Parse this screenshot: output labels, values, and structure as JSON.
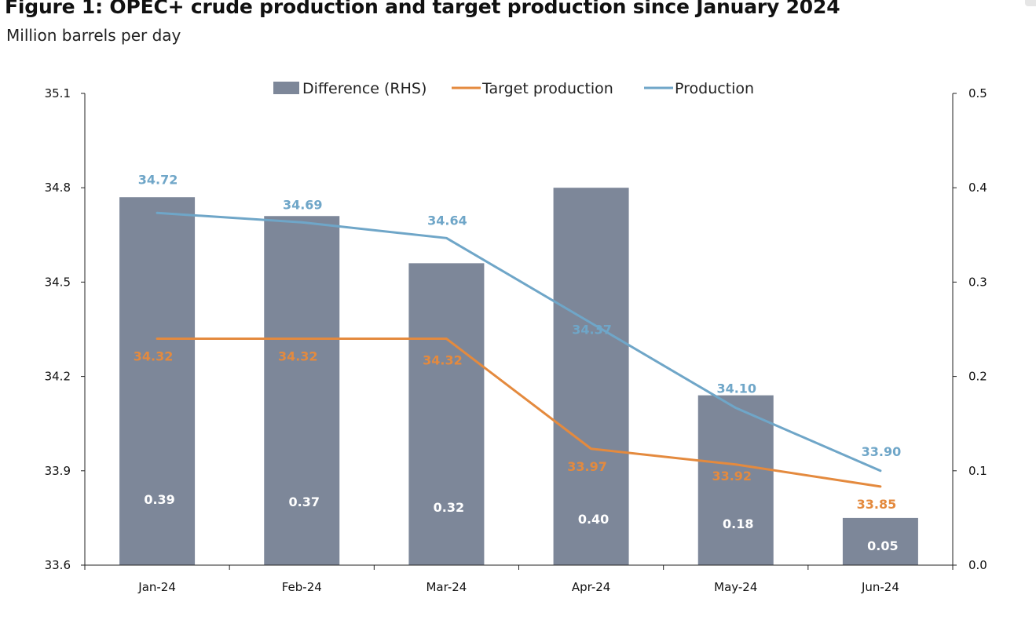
{
  "figure": {
    "title": "Figure 1: OPEC+ crude production and target production since January 2024",
    "subtitle": "Million barrels per day"
  },
  "chart_data": {
    "type": "bar",
    "categories": [
      "Jan-24",
      "Feb-24",
      "Mar-24",
      "Apr-24",
      "May-24",
      "Jun-24"
    ],
    "series": [
      {
        "name": "Difference (RHS)",
        "type": "bar",
        "axis": "right",
        "color": "#7d8799",
        "values": [
          0.39,
          0.37,
          0.32,
          0.4,
          0.18,
          0.05
        ],
        "labels": [
          "0.39",
          "0.37",
          "0.32",
          "0.40",
          "0.18",
          "0.05"
        ]
      },
      {
        "name": "Target production",
        "type": "line",
        "axis": "left",
        "color": "#e48a3e",
        "values": [
          34.32,
          34.32,
          34.32,
          33.97,
          33.92,
          33.85
        ],
        "labels": [
          "34.32",
          "34.32",
          "34.32",
          "33.97",
          "33.92",
          "33.85"
        ]
      },
      {
        "name": "Production",
        "type": "line",
        "axis": "left",
        "color": "#6fa6c8",
        "values": [
          34.72,
          34.69,
          34.64,
          34.37,
          34.1,
          33.9
        ],
        "labels": [
          "34.72",
          "34.69",
          "34.64",
          "34.37",
          "34.10",
          "33.90"
        ]
      }
    ],
    "y_left": {
      "ylim": [
        33.6,
        35.1
      ],
      "ticks": [
        "33.6",
        "33.9",
        "34.2",
        "34.5",
        "34.8",
        "35.1"
      ]
    },
    "y_right": {
      "ylim": [
        0.0,
        0.5
      ],
      "ticks": [
        "0.0",
        "0.1",
        "0.2",
        "0.3",
        "0.4",
        "0.5"
      ]
    },
    "legend_position": "top",
    "grid": false
  }
}
